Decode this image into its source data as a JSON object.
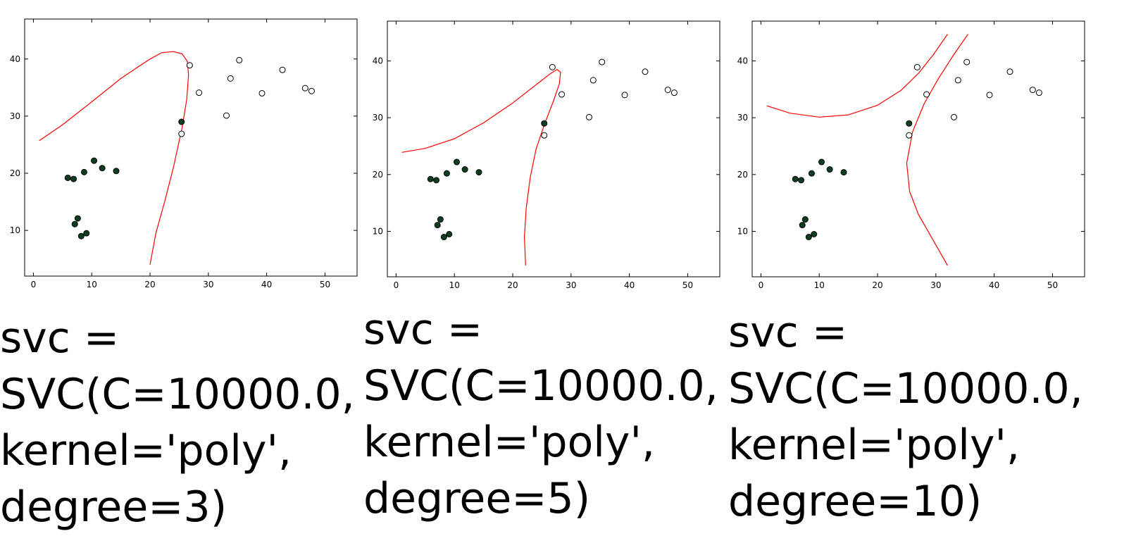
{
  "chart_data": [
    {
      "type": "scatter",
      "caption": "svc =\nSVC(C=10000.0,\nkernel='poly',\ndegree=3)",
      "xlim": [
        -1.5,
        55.5
      ],
      "ylim": [
        2,
        47
      ],
      "xticks": [
        0,
        10,
        20,
        30,
        40,
        50
      ],
      "yticks": [
        10,
        20,
        30,
        40
      ],
      "grid": false,
      "series": [
        {
          "marker": "filled",
          "color": "#0b3d1e",
          "points": [
            [
              5.9,
              19.2
            ],
            [
              6.9,
              19
            ],
            [
              8.7,
              20.2
            ],
            [
              10.4,
              22.2
            ],
            [
              11.8,
              20.9
            ],
            [
              14.2,
              20.4
            ],
            [
              7.1,
              11.1
            ],
            [
              7.6,
              12.1
            ],
            [
              8.2,
              9
            ],
            [
              9.1,
              9.5
            ],
            [
              25.4,
              29
            ]
          ]
        },
        {
          "marker": "open",
          "color": "#000000",
          "points": [
            [
              26.8,
              38.9
            ],
            [
              28.4,
              34.1
            ],
            [
              25.4,
              26.9
            ],
            [
              33.1,
              30.1
            ],
            [
              33.8,
              36.6
            ],
            [
              35.3,
              39.8
            ],
            [
              39.2,
              34
            ],
            [
              42.7,
              38.1
            ],
            [
              46.6,
              34.9
            ],
            [
              47.7,
              34.4
            ]
          ]
        }
      ],
      "boundary": [
        [
          [
            1,
            25.7
          ],
          [
            5,
            28.5
          ],
          [
            10,
            32.5
          ],
          [
            15,
            36.6
          ],
          [
            20,
            40
          ],
          [
            22,
            41.1
          ],
          [
            24,
            41.3
          ],
          [
            25.5,
            40.9
          ],
          [
            26.4,
            39.6
          ],
          [
            26.6,
            37.2
          ],
          [
            26.3,
            33
          ],
          [
            25.5,
            28
          ],
          [
            24,
            21
          ],
          [
            22.5,
            15
          ],
          [
            21,
            9.5
          ],
          [
            20,
            4
          ]
        ]
      ]
    },
    {
      "type": "scatter",
      "caption": "svc =\nSVC(C=10000.0,\nkernel='poly',\ndegree=5)",
      "xlim": [
        -1.5,
        55.5
      ],
      "ylim": [
        2,
        47
      ],
      "xticks": [
        0,
        10,
        20,
        30,
        40,
        50
      ],
      "yticks": [
        10,
        20,
        30,
        40
      ],
      "grid": false,
      "series": [
        {
          "marker": "filled",
          "color": "#0b3d1e",
          "points": [
            [
              5.9,
              19.2
            ],
            [
              6.9,
              19
            ],
            [
              8.7,
              20.2
            ],
            [
              10.4,
              22.2
            ],
            [
              11.8,
              20.9
            ],
            [
              14.2,
              20.4
            ],
            [
              7.1,
              11.1
            ],
            [
              7.6,
              12.1
            ],
            [
              8.2,
              9
            ],
            [
              9.1,
              9.5
            ],
            [
              25.4,
              29
            ]
          ]
        },
        {
          "marker": "open",
          "color": "#000000",
          "points": [
            [
              26.8,
              38.9
            ],
            [
              28.4,
              34.1
            ],
            [
              25.4,
              26.9
            ],
            [
              33.1,
              30.1
            ],
            [
              33.8,
              36.6
            ],
            [
              35.3,
              39.8
            ],
            [
              39.2,
              34
            ],
            [
              42.7,
              38.1
            ],
            [
              46.6,
              34.9
            ],
            [
              47.7,
              34.4
            ]
          ]
        }
      ],
      "boundary": [
        [
          [
            1,
            23.9
          ],
          [
            5,
            24.6
          ],
          [
            10,
            26.3
          ],
          [
            15,
            29.1
          ],
          [
            20,
            32.6
          ],
          [
            24,
            35.8
          ],
          [
            26.5,
            37.8
          ],
          [
            27.6,
            38.5
          ],
          [
            28.2,
            38
          ],
          [
            28,
            36
          ],
          [
            27,
            33
          ],
          [
            25.5,
            29
          ],
          [
            24,
            24.5
          ],
          [
            23,
            19.5
          ],
          [
            22.3,
            14
          ],
          [
            22,
            9
          ],
          [
            22.2,
            4
          ]
        ]
      ]
    },
    {
      "type": "scatter",
      "caption": "svc =\nSVC(C=10000.0,\nkernel='poly',\ndegree=10)",
      "xlim": [
        -1.5,
        55.5
      ],
      "ylim": [
        2,
        47
      ],
      "xticks": [
        0,
        10,
        20,
        30,
        40,
        50
      ],
      "yticks": [
        10,
        20,
        30,
        40
      ],
      "grid": false,
      "series": [
        {
          "marker": "filled",
          "color": "#0b3d1e",
          "points": [
            [
              5.9,
              19.2
            ],
            [
              6.9,
              19
            ],
            [
              8.7,
              20.2
            ],
            [
              10.4,
              22.2
            ],
            [
              11.8,
              20.9
            ],
            [
              14.2,
              20.4
            ],
            [
              7.1,
              11.1
            ],
            [
              7.6,
              12.1
            ],
            [
              8.2,
              9
            ],
            [
              9.1,
              9.5
            ],
            [
              25.4,
              29
            ]
          ]
        },
        {
          "marker": "open",
          "color": "#000000",
          "points": [
            [
              26.8,
              38.9
            ],
            [
              28.4,
              34.1
            ],
            [
              25.4,
              26.9
            ],
            [
              33.1,
              30.1
            ],
            [
              33.8,
              36.6
            ],
            [
              35.3,
              39.8
            ],
            [
              39.2,
              34
            ],
            [
              42.7,
              38.1
            ],
            [
              46.6,
              34.9
            ],
            [
              47.7,
              34.4
            ]
          ]
        }
      ],
      "boundary": [
        [
          [
            1,
            32.1
          ],
          [
            5,
            30.8
          ],
          [
            10,
            30.1
          ],
          [
            15,
            30.5
          ],
          [
            20,
            32.2
          ],
          [
            24,
            34.8
          ],
          [
            27,
            37.8
          ],
          [
            29.5,
            41
          ],
          [
            32,
            44.7
          ]
        ],
        [
          [
            35.5,
            44.7
          ],
          [
            33,
            41
          ],
          [
            30.5,
            37
          ],
          [
            28,
            32.5
          ],
          [
            26,
            27.5
          ],
          [
            25,
            22
          ],
          [
            25.5,
            17
          ],
          [
            27,
            13
          ],
          [
            29.5,
            8.5
          ],
          [
            32,
            4
          ]
        ]
      ]
    }
  ],
  "colors": {
    "boundary": "#ff0000",
    "filled_marker": "#0b3d1e",
    "open_marker": "#000000"
  }
}
